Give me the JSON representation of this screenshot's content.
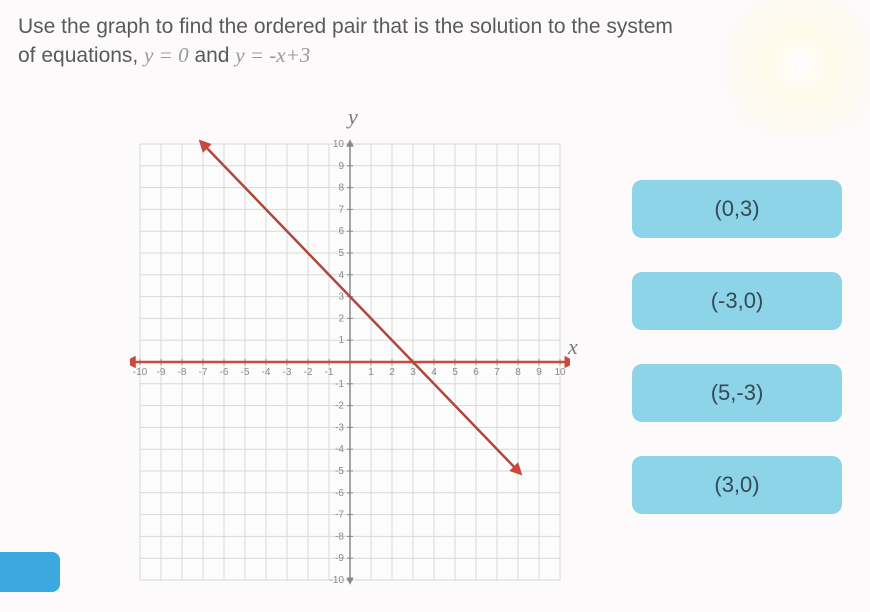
{
  "question": {
    "line1": "Use the graph to find the ordered pair that is the solution to the system",
    "line2_prefix": "of equations, ",
    "eq1": "y = 0",
    "line2_and": " and ",
    "eq2": "y = -x+3"
  },
  "graph": {
    "y_label": "y",
    "x_label": "x",
    "xlim": [
      -10,
      10
    ],
    "ylim": [
      -10,
      10
    ],
    "grid_step": 1,
    "grid_color": "#d8d8d8",
    "axis_color": "#888888",
    "tick_font_size": 10,
    "background_color": "#fdfcfc",
    "lines": [
      {
        "name": "y=0 (x-axis line)",
        "type": "line",
        "points": [
          [
            -10.5,
            0
          ],
          [
            10.5,
            0
          ]
        ],
        "color": "#c94a3b",
        "width": 2.5,
        "arrows": "both"
      },
      {
        "name": "y=-x+3",
        "type": "line",
        "points": [
          [
            -7,
            10
          ],
          [
            8,
            -5
          ]
        ],
        "color": "#b0473a",
        "width": 2.5,
        "arrows": "both"
      }
    ],
    "x_ticks": [
      -10,
      -9,
      -8,
      -7,
      -6,
      -5,
      -4,
      -3,
      -2,
      -1,
      1,
      2,
      3,
      4,
      5,
      6,
      7,
      8,
      9,
      10
    ],
    "y_ticks": [
      -10,
      -9,
      -8,
      -7,
      -6,
      -5,
      -4,
      -3,
      -2,
      -1,
      1,
      2,
      3,
      4,
      5,
      6,
      7,
      8,
      9,
      10
    ]
  },
  "answers": [
    {
      "label": "(0,3)"
    },
    {
      "label": "(-3,0)"
    },
    {
      "label": "(5,-3)"
    },
    {
      "label": "(3,0)"
    }
  ],
  "colors": {
    "answer_bg": "#8dd4e8",
    "answer_text": "#334a57",
    "question_text": "#5a5a5e"
  }
}
